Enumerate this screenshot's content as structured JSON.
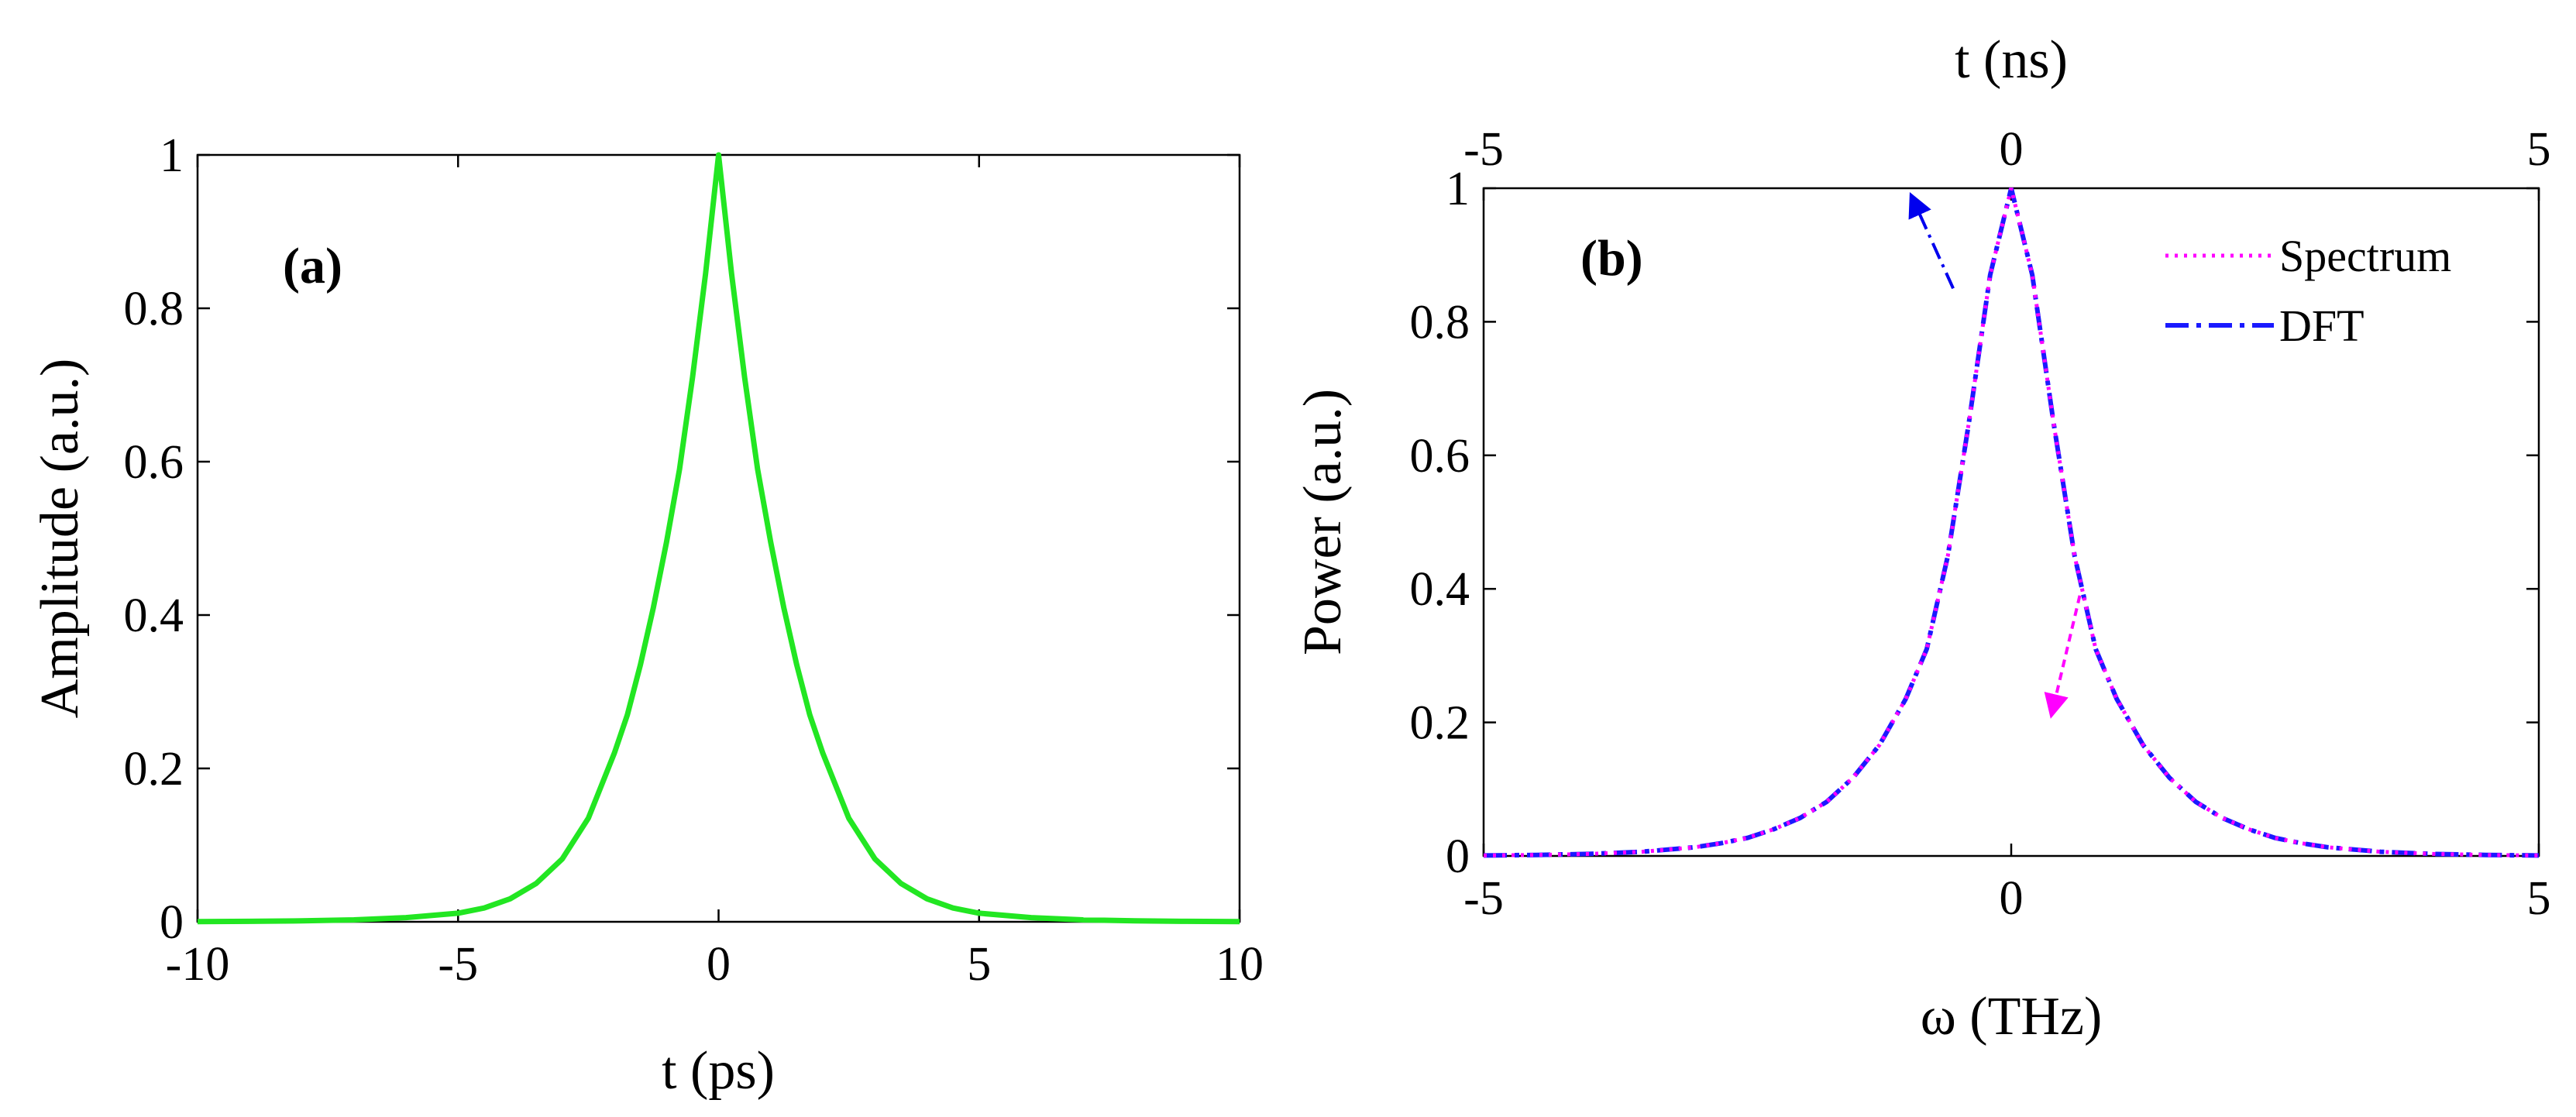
{
  "chart_data": [
    {
      "type": "line",
      "panel_label": "(a)",
      "xlabel": "t (ps)",
      "ylabel": "Amplitude (a.u.)",
      "xlim": [
        -10,
        10
      ],
      "ylim": [
        0,
        1
      ],
      "xticks": [
        -10,
        -5,
        0,
        5,
        10
      ],
      "xtick_labels": [
        "-10",
        "-5",
        "0",
        "5",
        "10"
      ],
      "yticks": [
        0,
        0.2,
        0.4,
        0.6,
        0.8,
        1
      ],
      "ytick_labels": [
        "0",
        "0.2",
        "0.4",
        "0.6",
        "0.8",
        "1"
      ],
      "series": [
        {
          "name": "Amplitude",
          "color": "#22e622",
          "style": "solid",
          "x": [
            -10,
            -9,
            -8,
            -7,
            -6,
            -5,
            -4.5,
            -4,
            -3.5,
            -3,
            -2.5,
            -2,
            -1.75,
            -1.5,
            -1.25,
            -1,
            -0.75,
            -0.5,
            -0.25,
            0,
            0.25,
            0.5,
            0.75,
            1,
            1.25,
            1.5,
            1.75,
            2,
            2.5,
            3,
            3.5,
            4,
            4.5,
            5,
            6,
            7,
            8,
            9,
            10
          ],
          "y": [
            0.0003,
            0.0006,
            0.0012,
            0.0025,
            0.0055,
            0.0112,
            0.018,
            0.03,
            0.05,
            0.082,
            0.135,
            0.22,
            0.27,
            0.335,
            0.41,
            0.495,
            0.59,
            0.71,
            0.845,
            1.0,
            0.845,
            0.71,
            0.59,
            0.495,
            0.41,
            0.335,
            0.27,
            0.22,
            0.135,
            0.082,
            0.05,
            0.03,
            0.018,
            0.0112,
            0.0055,
            0.0025,
            0.0012,
            0.0006,
            0.0003
          ]
        }
      ]
    },
    {
      "type": "line",
      "panel_label": "(b)",
      "xlabel": "ω (THz)",
      "x2label": "t (ns)",
      "ylabel": "Power (a.u.)",
      "xlim": [
        -5,
        5
      ],
      "ylim": [
        0,
        1
      ],
      "xticks": [
        -5,
        0,
        5
      ],
      "xtick_labels": [
        "-5",
        "0",
        "5"
      ],
      "x2ticks": [
        -5,
        0,
        5
      ],
      "x2tick_labels": [
        "-5",
        "0",
        "5"
      ],
      "yticks": [
        0,
        0.2,
        0.4,
        0.6,
        0.8,
        1
      ],
      "ytick_labels": [
        "0",
        "0.2",
        "0.4",
        "0.6",
        "0.8",
        "1"
      ],
      "legend": [
        "Spectrum",
        "DFT"
      ],
      "legend_position": "top-right",
      "annotations": [
        {
          "type": "arrow",
          "color": "#0000ee",
          "style": "dashdot",
          "from": [
            -0.55,
            0.85
          ],
          "to": [
            -0.95,
            0.99
          ],
          "note": "points to top axis (t)"
        },
        {
          "type": "arrow",
          "color": "#ff00ff",
          "style": "dotted",
          "from": [
            0.65,
            0.39
          ],
          "to": [
            0.38,
            0.21
          ],
          "note": "points to bottom axis (ω)"
        }
      ],
      "series": [
        {
          "name": "Spectrum",
          "color": "#ff00ff",
          "style": "dotted",
          "x": [
            -5,
            -4.5,
            -4,
            -3.5,
            -3,
            -2.75,
            -2.5,
            -2.25,
            -2,
            -1.75,
            -1.5,
            -1.25,
            -1,
            -0.8,
            -0.6,
            -0.4,
            -0.2,
            0,
            0.2,
            0.4,
            0.6,
            0.8,
            1,
            1.25,
            1.5,
            1.75,
            2,
            2.25,
            2.5,
            2.75,
            3,
            3.5,
            4,
            4.5,
            5
          ],
          "y": [
            0.0007,
            0.0015,
            0.003,
            0.0063,
            0.013,
            0.019,
            0.027,
            0.04,
            0.057,
            0.081,
            0.117,
            0.166,
            0.235,
            0.31,
            0.45,
            0.65,
            0.87,
            1.0,
            0.87,
            0.65,
            0.45,
            0.31,
            0.235,
            0.166,
            0.117,
            0.081,
            0.057,
            0.04,
            0.027,
            0.019,
            0.013,
            0.0063,
            0.003,
            0.0015,
            0.0007
          ]
        },
        {
          "name": "DFT",
          "color": "#1a1aff",
          "style": "dashdot",
          "x": [
            -5,
            -4.5,
            -4,
            -3.5,
            -3,
            -2.75,
            -2.5,
            -2.25,
            -2,
            -1.75,
            -1.5,
            -1.25,
            -1,
            -0.8,
            -0.6,
            -0.4,
            -0.2,
            0,
            0.2,
            0.4,
            0.6,
            0.8,
            1,
            1.25,
            1.5,
            1.75,
            2,
            2.25,
            2.5,
            2.75,
            3,
            3.5,
            4,
            4.5,
            5
          ],
          "y": [
            0.0007,
            0.0015,
            0.003,
            0.0063,
            0.013,
            0.019,
            0.027,
            0.04,
            0.057,
            0.081,
            0.117,
            0.166,
            0.235,
            0.31,
            0.45,
            0.65,
            0.87,
            1.0,
            0.87,
            0.65,
            0.45,
            0.31,
            0.235,
            0.166,
            0.117,
            0.081,
            0.057,
            0.04,
            0.027,
            0.019,
            0.013,
            0.0063,
            0.003,
            0.0015,
            0.0007
          ]
        }
      ]
    }
  ]
}
